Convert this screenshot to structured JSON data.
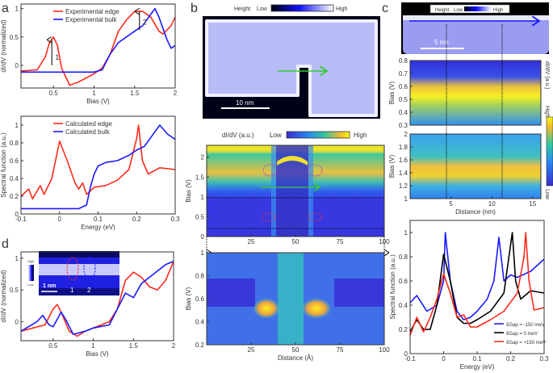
{
  "panel_labels": [
    "a",
    "b",
    "c",
    "d"
  ],
  "colors": {
    "edge": "#ff2a1a",
    "bulk": "#1a1aff",
    "black": "#000000",
    "arrow_green": "#33cc33"
  },
  "chart_data": [
    {
      "id": "a_top",
      "type": "line",
      "xlabel": "Bias (V)",
      "ylabel": "dI/dV (normalized)",
      "xlim": [
        0.1,
        2
      ],
      "ylim": [
        -0.4,
        1.08
      ],
      "xticks": [
        0.5,
        1,
        1.5,
        2
      ],
      "yticks": [
        0,
        0.5,
        1
      ],
      "legend": "top-center",
      "annotations": [
        "1",
        "2"
      ],
      "series": [
        {
          "name": "Experimental edge",
          "color": "#ff2a1a",
          "x": [
            0.1,
            0.3,
            0.4,
            0.45,
            0.5,
            0.55,
            0.6,
            0.7,
            0.8,
            1.0,
            1.1,
            1.2,
            1.3,
            1.4,
            1.5,
            1.6,
            1.7,
            1.8,
            1.85,
            1.95,
            2.0
          ],
          "y": [
            -0.1,
            -0.08,
            0.15,
            0.4,
            0.5,
            0.35,
            -0.05,
            -0.35,
            -0.3,
            -0.15,
            -0.05,
            0.2,
            0.6,
            0.8,
            0.95,
            0.95,
            0.85,
            0.6,
            0.55,
            0.7,
            0.85
          ]
        },
        {
          "name": "Experimental bulk",
          "color": "#1a1aff",
          "x": [
            0.1,
            1.0,
            1.1,
            1.2,
            1.3,
            1.5,
            1.6,
            1.7,
            1.75,
            1.8,
            1.9,
            1.95,
            2.0
          ],
          "y": [
            -0.12,
            -0.12,
            -0.08,
            0.2,
            0.4,
            0.6,
            0.7,
            0.9,
            1.0,
            0.85,
            0.45,
            0.3,
            0.35
          ]
        }
      ]
    },
    {
      "id": "a_bottom",
      "type": "line",
      "xlabel": "Energy (eV)",
      "ylabel": "Spectral function (a.u.)",
      "xlim": [
        -0.1,
        0.3
      ],
      "ylim": [
        0,
        1.1
      ],
      "xticks": [
        -0.1,
        0,
        0.1,
        0.2,
        0.3
      ],
      "yticks": [
        0,
        0.2,
        0.4,
        0.6,
        0.8,
        1
      ],
      "legend": "top-center",
      "series": [
        {
          "name": "Calculated edge",
          "color": "#ff2a1a",
          "x": [
            -0.1,
            -0.08,
            -0.07,
            -0.05,
            -0.04,
            -0.02,
            0,
            0.02,
            0.04,
            0.05,
            0.06,
            0.07,
            0.09,
            0.12,
            0.15,
            0.18,
            0.2,
            0.205,
            0.215,
            0.23,
            0.26,
            0.3
          ],
          "y": [
            0.2,
            0.28,
            0.17,
            0.32,
            0.22,
            0.4,
            0.82,
            0.6,
            0.35,
            0.28,
            0.35,
            0.22,
            0.3,
            0.32,
            0.38,
            0.5,
            0.85,
            1.0,
            0.6,
            0.45,
            0.52,
            0.5
          ]
        },
        {
          "name": "Calculated bulk",
          "color": "#1a1aff",
          "x": [
            -0.1,
            0.05,
            0.07,
            0.08,
            0.09,
            0.1,
            0.12,
            0.15,
            0.18,
            0.2,
            0.22,
            0.24,
            0.26,
            0.28,
            0.3
          ],
          "y": [
            0.06,
            0.06,
            0.1,
            0.3,
            0.45,
            0.54,
            0.58,
            0.6,
            0.66,
            0.72,
            0.76,
            0.88,
            1.0,
            0.9,
            0.84
          ]
        }
      ]
    },
    {
      "id": "d",
      "type": "line",
      "xlabel": "Bias (V)",
      "ylabel": "dI/dV (normalized)",
      "xlim": [
        0.1,
        2
      ],
      "ylim": [
        -0.3,
        1.1
      ],
      "xticks": [
        0.5,
        1,
        1.5,
        2
      ],
      "yticks": [
        0,
        0.5,
        1
      ],
      "inset": {
        "colorbar_high": "High",
        "colorbar_low": "Low",
        "scalebar": "1 nm",
        "markers": [
          "1",
          "2"
        ]
      },
      "series": [
        {
          "color": "#ff2a1a",
          "x": [
            0.1,
            0.4,
            0.5,
            0.55,
            0.6,
            0.7,
            0.8,
            0.9,
            1.0,
            1.2,
            1.3,
            1.4,
            1.5,
            1.6,
            1.7,
            1.8,
            1.9,
            2.0
          ],
          "y": [
            -0.15,
            -0.05,
            0.2,
            0.27,
            0.15,
            -0.15,
            -0.23,
            -0.15,
            -0.1,
            0,
            0.2,
            0.65,
            0.78,
            0.7,
            0.55,
            0.5,
            0.65,
            0.95
          ]
        },
        {
          "color": "#1a1aff",
          "x": [
            0.1,
            0.3,
            0.37,
            0.45,
            0.5,
            0.6,
            0.65,
            0.75,
            0.9,
            1.0,
            1.2,
            1.3,
            1.4,
            1.5,
            1.6,
            1.7,
            1.8,
            1.9,
            2.0
          ],
          "y": [
            -0.15,
            0,
            0.1,
            -0.05,
            -0.08,
            0.15,
            0.05,
            -0.2,
            -0.15,
            -0.1,
            -0.05,
            0.2,
            0.45,
            0.38,
            0.6,
            0.7,
            0.8,
            0.9,
            0.95
          ]
        }
      ]
    },
    {
      "id": "b_map",
      "type": "heatmap",
      "ylabel": "Bias (V)",
      "xlim": [
        0,
        100
      ],
      "ylim": [
        0,
        2.3
      ],
      "xticks": [
        25,
        50,
        75,
        100
      ],
      "yticks": [
        0,
        0.5,
        1,
        1.5,
        2
      ],
      "colorbar": {
        "label": "dI/dV (a.u.)",
        "low": "Low",
        "high": "High"
      }
    },
    {
      "id": "b_zoom",
      "type": "heatmap",
      "xlabel": "Distance (Å)",
      "ylabel": "Bias (V)",
      "xlim": [
        0,
        100
      ],
      "ylim": [
        0.2,
        1
      ],
      "xticks": [
        25,
        50,
        75,
        100
      ],
      "yticks": [
        0.2,
        0.4,
        0.6,
        0.8,
        1
      ]
    },
    {
      "id": "c_map_low",
      "type": "heatmap",
      "ylabel": "Bias (V)",
      "xlim": [
        0,
        16
      ],
      "ylim": [
        0.3,
        0.8
      ],
      "yticks": [
        0.3,
        0.4,
        0.5,
        0.6,
        0.7,
        0.8
      ]
    },
    {
      "id": "c_map_high",
      "type": "heatmap",
      "xlabel": "Distance (nm)",
      "ylabel": "Bias (V)",
      "xlim": [
        0,
        16
      ],
      "ylim": [
        1,
        2
      ],
      "xticks": [
        5,
        10,
        15
      ],
      "yticks": [
        1,
        1.2,
        1.4,
        1.6,
        1.8,
        2
      ],
      "colorbar": {
        "label": "dI/dV (a.u.)",
        "low": "Low",
        "high": "High"
      }
    },
    {
      "id": "c_bottom",
      "type": "line",
      "xlabel": "Energy (eV)",
      "ylabel": "Spectral function (a.u.)",
      "xlim": [
        -0.1,
        0.3
      ],
      "ylim": [
        0,
        1.1
      ],
      "xticks": [
        -0.1,
        0,
        0.1,
        0.2,
        0.3
      ],
      "yticks": [
        0,
        0.2,
        0.4,
        0.6,
        0.8,
        1
      ],
      "legend": "bottom-right",
      "series": [
        {
          "name": "δGap = -150 meV",
          "color": "#1a1aff",
          "x": [
            -0.1,
            -0.08,
            -0.05,
            -0.02,
            0,
            0.005,
            0.02,
            0.04,
            0.06,
            0.08,
            0.1,
            0.13,
            0.15,
            0.165,
            0.18,
            0.2,
            0.22,
            0.26,
            0.3
          ],
          "y": [
            0.42,
            0.48,
            0.35,
            0.4,
            0.6,
            1.0,
            0.6,
            0.35,
            0.28,
            0.3,
            0.35,
            0.45,
            0.6,
            0.96,
            0.6,
            0.65,
            0.63,
            0.68,
            0.78
          ]
        },
        {
          "name": "δGap = 0 meV",
          "color": "#000000",
          "x": [
            -0.1,
            -0.08,
            -0.06,
            -0.04,
            -0.02,
            0,
            0.02,
            0.04,
            0.06,
            0.08,
            0.1,
            0.14,
            0.18,
            0.2,
            0.205,
            0.215,
            0.23,
            0.26,
            0.3
          ],
          "y": [
            0.18,
            0.28,
            0.2,
            0.2,
            0.4,
            0.82,
            0.6,
            0.3,
            0.25,
            0.25,
            0.28,
            0.35,
            0.5,
            0.9,
            1.0,
            0.6,
            0.45,
            0.52,
            0.5
          ]
        },
        {
          "name": "δGap = +150 meV",
          "color": "#ff2a1a",
          "x": [
            -0.1,
            -0.08,
            -0.06,
            -0.04,
            -0.02,
            0,
            0.02,
            0.04,
            0.06,
            0.08,
            0.1,
            0.14,
            0.18,
            0.22,
            0.24,
            0.245,
            0.255,
            0.27,
            0.3
          ],
          "y": [
            0.15,
            0.3,
            0.18,
            0.3,
            0.45,
            0.66,
            0.5,
            0.3,
            0.32,
            0.22,
            0.22,
            0.28,
            0.35,
            0.5,
            0.8,
            1.0,
            0.6,
            0.36,
            0.38
          ]
        }
      ]
    }
  ],
  "images": {
    "b_topo": {
      "colorbar_title": "Height",
      "low": "Low",
      "high": "High",
      "scalebar": "10 nm"
    },
    "c_topo": {
      "colorbar_title": "Height",
      "low": "Low",
      "high": "High",
      "scalebar": "5 nm"
    }
  }
}
